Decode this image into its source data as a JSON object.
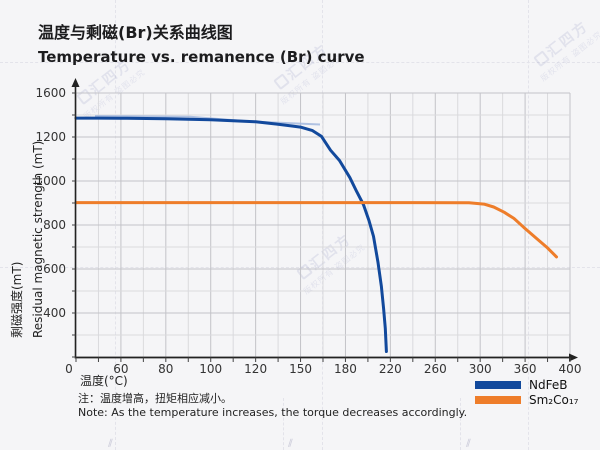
{
  "title": {
    "zh": "温度与剩磁(Br)关系曲线图",
    "en": "Temperature vs. remanence (Br) curve"
  },
  "axis_labels": {
    "x": "温度(°C)",
    "y_zh": "剩磁强度(mT)",
    "y_en": "Residual magnetic strength (mT)"
  },
  "chart_data": {
    "type": "line",
    "title_zh": "温度与剩磁(Br)关系曲线图",
    "title_en": "Temperature vs. remanence (Br) curve",
    "xlabel": "温度(°C)",
    "ylabel": "剩磁强度(mT) / Residual magnetic strength (mT)",
    "x_tick_labels": [
      0,
      60,
      80,
      100,
      120,
      150,
      180,
      220,
      260,
      300,
      360,
      400
    ],
    "y_tick_labels": [
      1600,
      1200,
      1000,
      800,
      600,
      400
    ],
    "scale_hint": "tick labels are evenly spaced on both axes despite non-uniform numeric increments; grid on, minor gridline between each pair of labeled ticks",
    "legend_position": "bottom-right",
    "series": [
      {
        "name": "NdFeB",
        "color": "#12499c",
        "points": [
          [
            0,
            1372
          ],
          [
            30,
            1372
          ],
          [
            60,
            1371
          ],
          [
            80,
            1366
          ],
          [
            100,
            1357
          ],
          [
            120,
            1338
          ],
          [
            135,
            1316
          ],
          [
            150,
            1290
          ],
          [
            158,
            1258
          ],
          [
            164,
            1205
          ],
          [
            170,
            1140
          ],
          [
            176,
            1093
          ],
          [
            184,
            1015
          ],
          [
            190,
            952
          ],
          [
            196,
            893
          ],
          [
            201,
            820
          ],
          [
            205,
            748
          ],
          [
            209,
            630
          ],
          [
            212,
            520
          ],
          [
            214,
            420
          ],
          [
            215.5,
            330
          ],
          [
            216.5,
            225
          ]
        ]
      },
      {
        "name": "Sm₂Co₁₇",
        "color": "#ee7d2a",
        "points": [
          [
            0,
            902
          ],
          [
            60,
            902
          ],
          [
            120,
            902
          ],
          [
            180,
            902
          ],
          [
            240,
            902
          ],
          [
            290,
            901
          ],
          [
            305,
            895
          ],
          [
            318,
            882
          ],
          [
            332,
            858
          ],
          [
            345,
            830
          ],
          [
            358,
            790
          ],
          [
            370,
            740
          ],
          [
            380,
            696
          ],
          [
            388,
            655
          ]
        ]
      }
    ]
  },
  "legend": [
    {
      "label": "NdFeB",
      "color": "#12499c"
    },
    {
      "label": "Sm₂Co₁₇",
      "color": "#ee7d2a"
    }
  ],
  "note": {
    "zh": "注：温度增高，扭矩相应减小。",
    "en": "Note: As the temperature increases, the torque decreases accordingly."
  },
  "watermark": {
    "brand": "汇四方",
    "notice": "版权所有 盗图必究"
  }
}
